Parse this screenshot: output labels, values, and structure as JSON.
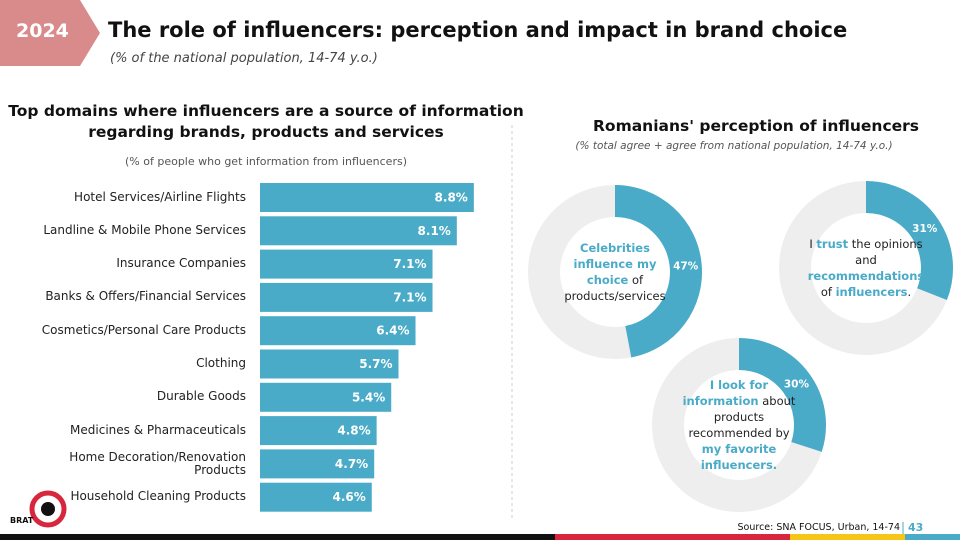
{
  "header": {
    "badge": "2024",
    "title": "The role of influencers: perception and impact in brand choice",
    "subtitle": "(% of the national population, 14-74 y.o.)"
  },
  "chart_data": [
    {
      "type": "bar",
      "orientation": "horizontal",
      "title": "Top domains where influencers are a source of information regarding brands, products and services",
      "subtitle": "(% of people who get information from influencers)",
      "color": "#4aabc8",
      "categories": [
        "Hotel Services/Airline Flights",
        "Landline & Mobile Phone Services",
        "Insurance Companies",
        "Banks & Offers/Financial Services",
        "Cosmetics/Personal Care Products",
        "Clothing",
        "Durable Goods",
        "Medicines & Pharmaceuticals",
        "Home Decoration/Renovation Products",
        "Household Cleaning Products"
      ],
      "values": [
        8.8,
        8.1,
        7.1,
        7.1,
        6.4,
        5.7,
        5.4,
        4.8,
        4.7,
        4.6
      ],
      "value_labels": [
        "8.8%",
        "8.1%",
        "7.1%",
        "7.1%",
        "6.4%",
        "5.7%",
        "5.4%",
        "4.8%",
        "4.7%",
        "4.6%"
      ]
    },
    {
      "type": "donut",
      "title": "Romanians' perception of influencers",
      "subtitle": "(% total agree + agree from national population, 14-74 y.o.)",
      "color": "#4aabc8",
      "track_color": "#eeeeee",
      "items": [
        {
          "value": 47,
          "value_label": "47%",
          "label_parts": [
            {
              "text": "Celebrities influence my choice",
              "color": "#4aabc8"
            },
            {
              "text": " of products/services",
              "color": "#222222"
            }
          ]
        },
        {
          "value": 31,
          "value_label": "31%",
          "label_parts": [
            {
              "text": "I ",
              "color": "#222222"
            },
            {
              "text": "trust",
              "color": "#4aabc8"
            },
            {
              "text": " the opinions and ",
              "color": "#222222"
            },
            {
              "text": "recommendations",
              "color": "#4aabc8"
            },
            {
              "text": " of ",
              "color": "#222222"
            },
            {
              "text": "influencers",
              "color": "#4aabc8"
            },
            {
              "text": ".",
              "color": "#222222"
            }
          ]
        },
        {
          "value": 30,
          "value_label": "30%",
          "label_parts": [
            {
              "text": "I look for information",
              "color": "#4aabc8"
            },
            {
              "text": " about products recommended by ",
              "color": "#222222"
            },
            {
              "text": "my favorite influencers.",
              "color": "#4aabc8"
            }
          ]
        }
      ]
    }
  ],
  "footer": {
    "source": "Source: SNA FOCUS, Urban, 14-74",
    "page": "43",
    "logo": "BRAT"
  }
}
